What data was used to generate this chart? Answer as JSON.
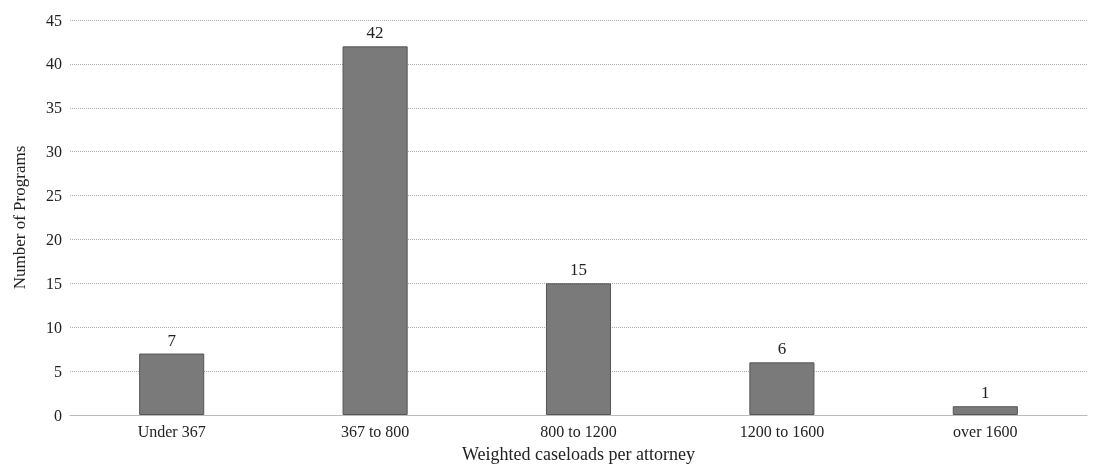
{
  "chart_data": {
    "type": "bar",
    "xlabel": "Weighted caseloads per attorney",
    "ylabel": "Number of Programs",
    "categories": [
      "Under 367",
      "367 to 800",
      "800 to 1200",
      "1200 to 1600",
      "over 1600"
    ],
    "values": [
      7,
      42,
      15,
      6,
      1
    ],
    "color": "#7a7a7a",
    "ylim": [
      0,
      45
    ],
    "yticks": [
      0,
      5,
      10,
      15,
      20,
      25,
      30,
      35,
      40,
      45
    ],
    "grid": "y",
    "data_labels": true
  }
}
